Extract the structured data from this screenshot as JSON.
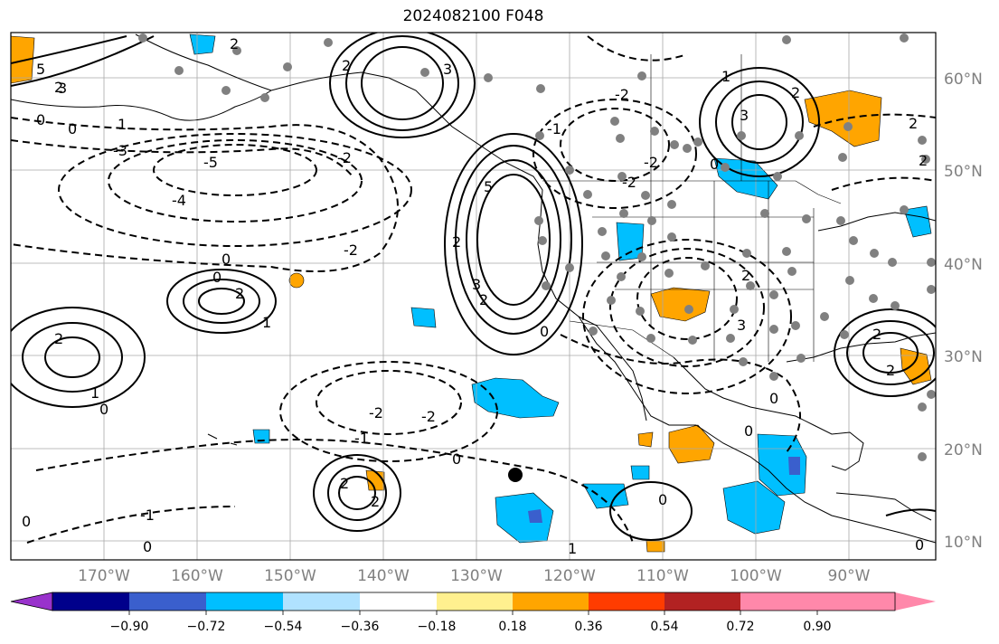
{
  "title": "2024082100 F048",
  "lat_labels": [
    "60°N",
    "50°N",
    "40°N",
    "30°N",
    "20°N",
    "10°N"
  ],
  "lon_labels": [
    "170°W",
    "160°W",
    "150°W",
    "140°W",
    "130°W",
    "120°W",
    "110°W",
    "100°W",
    "90°W"
  ],
  "colorbar": {
    "ticks": [
      "−0.90",
      "−0.72",
      "−0.54",
      "−0.36",
      "−0.18",
      "0.18",
      "0.36",
      "0.54",
      "0.72",
      "0.90"
    ],
    "colors": [
      "#9932cc",
      "#00008b",
      "#3a5fcd",
      "#00bfff",
      "#b0e2ff",
      "#ffffff",
      "#fff08f",
      "#ffa500",
      "#ff3c00",
      "#b22222",
      "#ff88aa"
    ]
  },
  "contour_labels": [
    "2",
    "3",
    "5",
    "0",
    "1",
    "-5",
    "-4",
    "-2",
    "-1",
    "-3"
  ]
}
